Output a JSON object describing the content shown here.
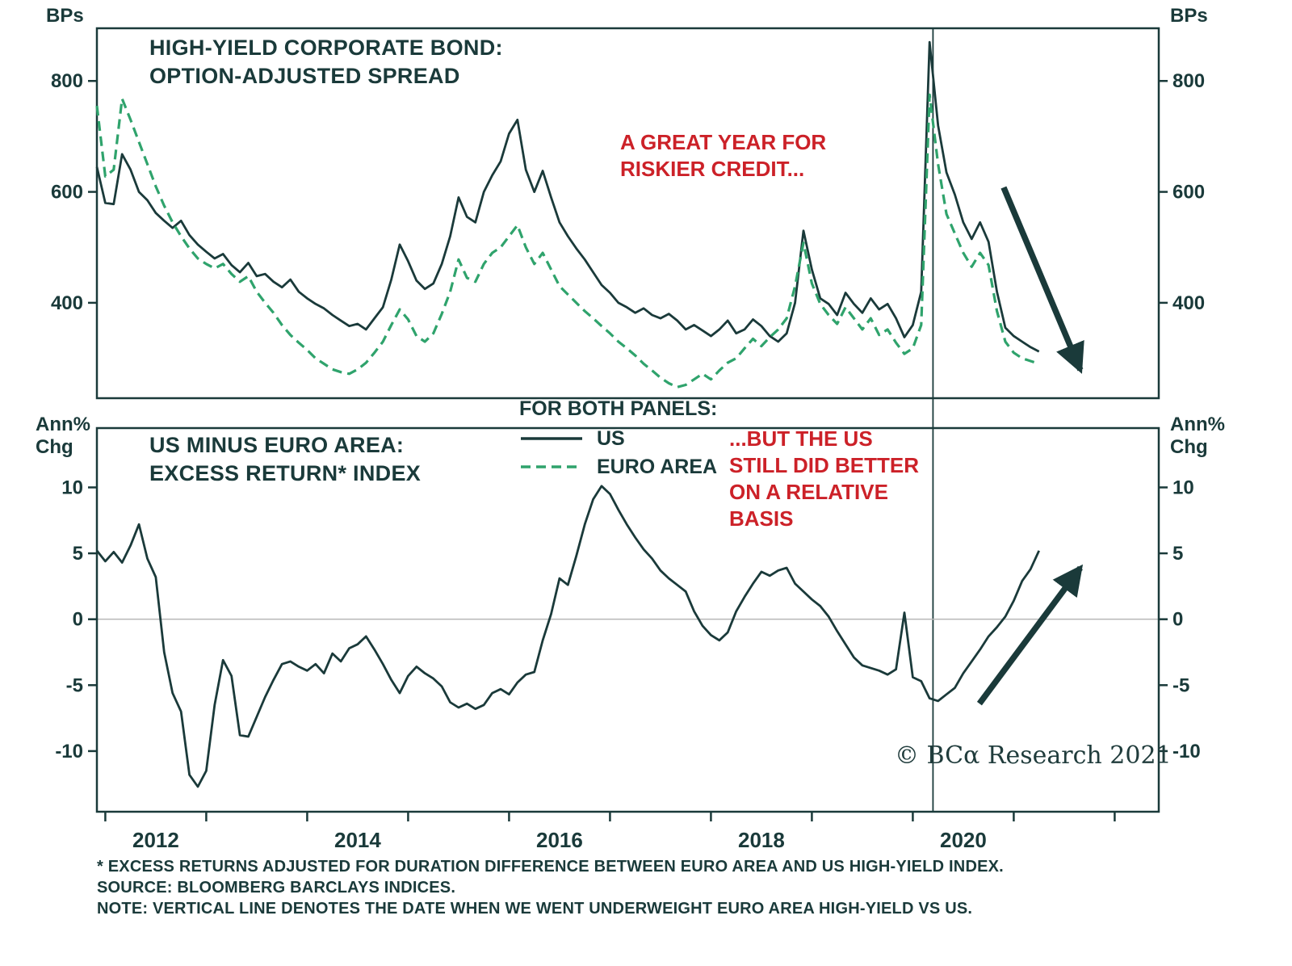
{
  "colors": {
    "dark": "#1a3a3a",
    "green": "#2fa36c",
    "red": "#cc2128",
    "zero_line": "#b8b8b8",
    "background": "#ffffff"
  },
  "top_panel": {
    "unit_left": "BPs",
    "unit_right": "BPs",
    "title": [
      "HIGH-YIELD CORPORATE BOND:",
      "OPTION-ADJUSTED SPREAD"
    ],
    "annotation": [
      "A GREAT YEAR FOR",
      "RISKIER CREDIT..."
    ]
  },
  "bottom_panel": {
    "unit_left": [
      "Ann%",
      "Chg"
    ],
    "unit_right": [
      "Ann%",
      "Chg"
    ],
    "title": [
      "US MINUS EURO AREA:",
      "EXCESS RETURN* INDEX"
    ],
    "annotation": [
      "...BUT THE US",
      "STILL DID BETTER",
      "ON A RELATIVE",
      "BASIS"
    ]
  },
  "legend": {
    "heading": "FOR BOTH PANELS:",
    "items": [
      {
        "label": "US",
        "style": "solid"
      },
      {
        "label": "EURO AREA",
        "style": "dashed"
      }
    ]
  },
  "copyright": "© BCα Research 2021",
  "footnotes": [
    "* EXCESS RETURNS ADJUSTED FOR DURATION DIFFERENCE BETWEEN EURO AREA AND US HIGH-YIELD INDEX.",
    "SOURCE: BLOOMBERG BARCLAYS INDICES.",
    "NOTE: VERTICAL LINE DENOTES THE DATE WHEN WE WENT UNDERWEIGHT EURO AREA HIGH-YIELD VS US."
  ],
  "chart_data": [
    {
      "type": "line",
      "title": "HIGH-YIELD CORPORATE BOND: OPTION-ADJUSTED SPREAD",
      "ylabel": "BPs",
      "x_start": 2011.9167,
      "x_step": 0.0833333,
      "xlim": [
        2011.9167,
        2022.4367
      ],
      "ylim": [
        228,
        895
      ],
      "yticks": [
        400,
        600,
        800
      ],
      "vline_x": 2020.2,
      "legend_position": "between-panels",
      "grid": false,
      "series": [
        {
          "name": "US",
          "color": "#1a3a3a",
          "dash": false,
          "values": [
            645,
            580,
            578,
            668,
            640,
            600,
            585,
            562,
            548,
            535,
            548,
            522,
            505,
            492,
            480,
            488,
            468,
            455,
            472,
            448,
            452,
            438,
            428,
            442,
            420,
            408,
            398,
            390,
            378,
            368,
            358,
            362,
            352,
            372,
            392,
            442,
            505,
            475,
            440,
            425,
            435,
            470,
            520,
            590,
            555,
            545,
            600,
            630,
            655,
            705,
            730,
            640,
            600,
            638,
            590,
            545,
            520,
            498,
            478,
            455,
            432,
            418,
            400,
            392,
            382,
            390,
            378,
            372,
            380,
            368,
            352,
            360,
            350,
            340,
            352,
            368,
            345,
            352,
            370,
            358,
            340,
            330,
            345,
            400,
            530,
            460,
            408,
            398,
            378,
            418,
            398,
            382,
            408,
            388,
            398,
            372,
            338,
            360,
            420,
            870,
            720,
            635,
            595,
            545,
            515,
            545,
            510,
            420,
            355,
            340,
            330,
            320,
            312
          ]
        },
        {
          "name": "EURO AREA",
          "color": "#2fa36c",
          "dash": true,
          "values": [
            755,
            628,
            640,
            768,
            730,
            690,
            650,
            610,
            575,
            545,
            520,
            498,
            480,
            470,
            462,
            470,
            452,
            438,
            448,
            420,
            400,
            382,
            360,
            342,
            328,
            315,
            300,
            290,
            280,
            275,
            272,
            280,
            292,
            310,
            330,
            360,
            388,
            370,
            340,
            330,
            345,
            380,
            420,
            478,
            445,
            438,
            470,
            490,
            500,
            520,
            540,
            500,
            470,
            490,
            460,
            430,
            415,
            400,
            385,
            372,
            358,
            345,
            330,
            318,
            305,
            290,
            278,
            265,
            255,
            248,
            252,
            262,
            272,
            262,
            278,
            292,
            300,
            318,
            335,
            322,
            338,
            352,
            372,
            430,
            508,
            435,
            398,
            378,
            362,
            392,
            372,
            352,
            372,
            342,
            352,
            328,
            308,
            318,
            360,
            775,
            650,
            560,
            525,
            490,
            465,
            490,
            468,
            385,
            330,
            310,
            300,
            295,
            290
          ]
        }
      ],
      "arrows": [
        {
          "x1": 2020.9,
          "y1": 608,
          "x2": 2021.66,
          "y2": 279
        }
      ]
    },
    {
      "type": "line",
      "title": "US MINUS EURO AREA: EXCESS RETURN* INDEX",
      "ylabel": "Ann% Chg",
      "x_start": 2011.9167,
      "x_step": 0.0833333,
      "xlim": [
        2011.9167,
        2022.4367
      ],
      "ylim": [
        -14.6,
        14.5
      ],
      "yticks": [
        -10,
        -5,
        0,
        5,
        10
      ],
      "xticks": [
        2012,
        2013,
        2014,
        2015,
        2016,
        2017,
        2018,
        2019,
        2020,
        2021,
        2022
      ],
      "xtick_labels": [
        {
          "x": 2012.5,
          "label": "2012"
        },
        {
          "x": 2014.5,
          "label": "2014"
        },
        {
          "x": 2016.5,
          "label": "2016"
        },
        {
          "x": 2018.5,
          "label": "2018"
        },
        {
          "x": 2020.5,
          "label": "2020"
        }
      ],
      "zero_line": true,
      "grid": false,
      "series": [
        {
          "name": "US MINUS EURO AREA EXCESS RETURN",
          "color": "#1a3a3a",
          "dash": false,
          "values": [
            5.2,
            4.4,
            5.1,
            4.3,
            5.6,
            7.2,
            4.6,
            3.2,
            -2.5,
            -5.6,
            -7.0,
            -11.8,
            -12.7,
            -11.5,
            -6.5,
            -3.1,
            -4.3,
            -8.8,
            -8.9,
            -7.4,
            -5.9,
            -4.6,
            -3.4,
            -3.2,
            -3.6,
            -3.9,
            -3.4,
            -4.1,
            -2.6,
            -3.2,
            -2.2,
            -1.9,
            -1.3,
            -2.3,
            -3.4,
            -4.6,
            -5.6,
            -4.3,
            -3.6,
            -4.1,
            -4.5,
            -5.1,
            -6.3,
            -6.7,
            -6.4,
            -6.8,
            -6.5,
            -5.6,
            -5.3,
            -5.7,
            -4.8,
            -4.2,
            -4.0,
            -1.6,
            0.4,
            3.1,
            2.6,
            4.8,
            7.2,
            9.1,
            10.1,
            9.5,
            8.3,
            7.2,
            6.2,
            5.3,
            4.6,
            3.7,
            3.1,
            2.6,
            2.1,
            0.6,
            -0.5,
            -1.2,
            -1.6,
            -1.0,
            0.6,
            1.7,
            2.7,
            3.6,
            3.3,
            3.7,
            3.9,
            2.7,
            2.1,
            1.5,
            1.0,
            0.2,
            -0.9,
            -1.9,
            -2.9,
            -3.5,
            -3.7,
            -3.9,
            -4.2,
            -3.8,
            0.5,
            -4.4,
            -4.7,
            -6.0,
            -6.2,
            -5.7,
            -5.2,
            -4.1,
            -3.2,
            -2.3,
            -1.3,
            -0.6,
            0.2,
            1.4,
            2.9,
            3.8,
            5.2
          ]
        }
      ],
      "arrows": [
        {
          "x1": 2020.66,
          "y1": -6.4,
          "x2": 2021.66,
          "y2": 3.9
        }
      ]
    }
  ]
}
